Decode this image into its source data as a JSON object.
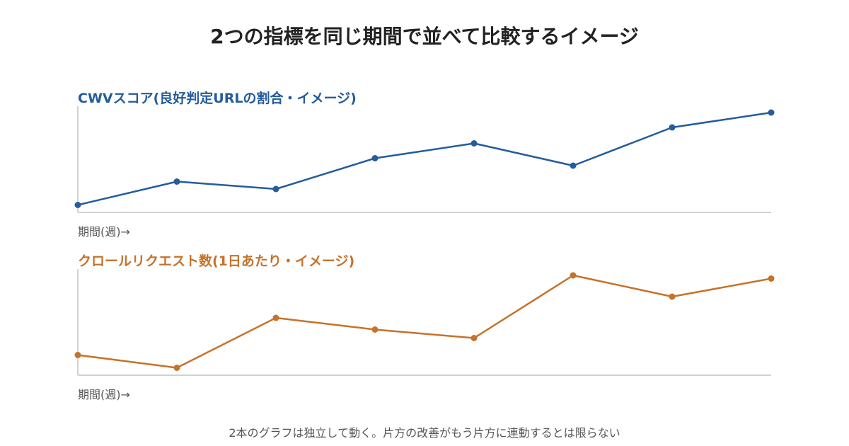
{
  "title": "2つの指標を同じ期間で並べて比較するイメージ",
  "footnote": "2本のグラフは独立して動く。片方の改善がもう片方に連動するとは限らない",
  "chart_data": [
    {
      "type": "line",
      "title": "CWVスコア(良好判定URLの割合・イメージ)",
      "xlabel": "期間(週)→",
      "ylabel": "",
      "color": "#245c9c",
      "x": [
        1,
        2,
        3,
        4,
        5,
        6,
        7,
        8
      ],
      "values": [
        0.07,
        0.29,
        0.22,
        0.51,
        0.65,
        0.44,
        0.8,
        0.94
      ],
      "ylim": [
        0,
        1
      ],
      "grid": false
    },
    {
      "type": "line",
      "title": "クロールリクエスト数(1日あたり・イメージ)",
      "xlabel": "期間(週)→",
      "ylabel": "",
      "color": "#c6722a",
      "x": [
        1,
        2,
        3,
        4,
        5,
        6,
        7,
        8
      ],
      "values": [
        0.19,
        0.07,
        0.54,
        0.43,
        0.35,
        0.94,
        0.74,
        0.91
      ],
      "ylim": [
        0,
        1
      ],
      "grid": false
    }
  ]
}
